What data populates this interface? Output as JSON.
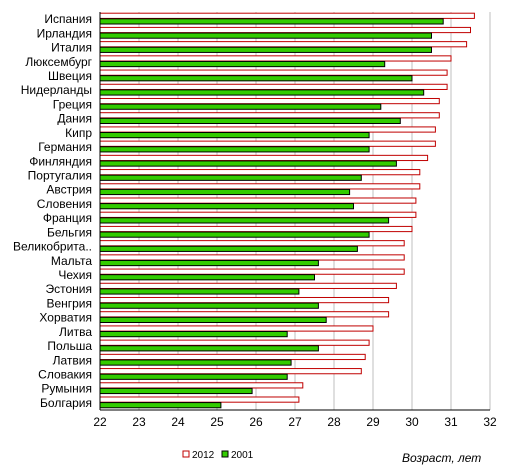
{
  "chart_data": {
    "type": "bar",
    "orientation": "horizontal",
    "xlabel": "Возраст, лет",
    "xlim": [
      22,
      32
    ],
    "xticks": [
      22,
      23,
      24,
      25,
      26,
      27,
      28,
      29,
      30,
      31,
      32
    ],
    "grid": "vertical",
    "legend_position": "bottom",
    "categories": [
      "Испания",
      "Ирландия",
      "Италия",
      "Люксембург",
      "Швеция",
      "Нидерланды",
      "Греция",
      "Дания",
      "Кипр",
      "Германия",
      "Финляндия",
      "Португалия",
      "Австрия",
      "Словения",
      "Франция",
      "Бельгия",
      "Великобрита..",
      "Мальта",
      "Чехия",
      "Эстония",
      "Венгрия",
      "Хорватия",
      "Литва",
      "Польша",
      "Латвия",
      "Словакия",
      "Румыния",
      "Болгария"
    ],
    "series": [
      {
        "name": "2012",
        "color": "#c00000",
        "fill": "#ffffff",
        "values": [
          31.6,
          31.5,
          31.4,
          31.0,
          30.9,
          30.9,
          30.7,
          30.7,
          30.6,
          30.6,
          30.4,
          30.2,
          30.2,
          30.1,
          30.1,
          30.0,
          29.8,
          29.8,
          29.8,
          29.6,
          29.4,
          29.4,
          29.0,
          28.9,
          28.8,
          28.7,
          27.2,
          27.1
        ]
      },
      {
        "name": "2001",
        "color": "#000000",
        "fill": "#33cc00",
        "values": [
          30.8,
          30.5,
          30.5,
          29.3,
          30.0,
          30.3,
          29.2,
          29.7,
          28.9,
          28.9,
          29.6,
          28.7,
          28.4,
          28.5,
          29.4,
          28.9,
          28.6,
          27.6,
          27.5,
          27.1,
          27.6,
          27.8,
          26.8,
          27.6,
          26.9,
          26.8,
          25.9,
          25.1
        ]
      }
    ]
  }
}
